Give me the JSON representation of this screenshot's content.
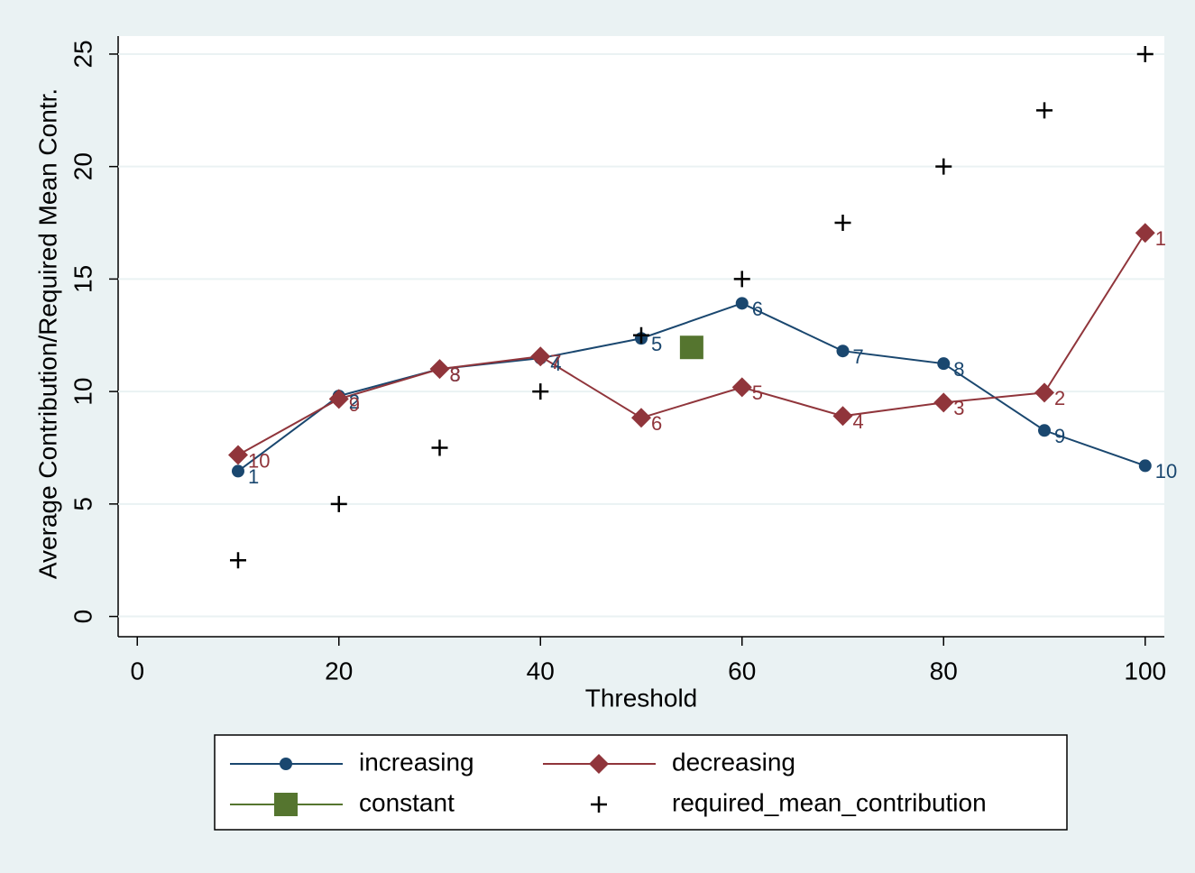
{
  "chart_data": {
    "type": "line",
    "x_label": "Threshold",
    "y_label": "Average Contribution/Required Mean Contr.",
    "xlim": [
      -1.9,
      101.9
    ],
    "ylim": [
      -0.9,
      25.8
    ],
    "xticks": [
      0,
      20,
      40,
      60,
      80,
      100
    ],
    "yticks": [
      0,
      5,
      10,
      15,
      20,
      25
    ],
    "grid": true,
    "series": [
      {
        "name": "increasing",
        "color": "#1a476f",
        "marker": "circle",
        "line": true,
        "x": [
          10,
          20,
          30,
          40,
          50,
          60,
          70,
          80,
          90,
          100
        ],
        "values": [
          6.46,
          9.8,
          11.0,
          11.48,
          12.36,
          13.92,
          11.8,
          11.24,
          8.27,
          6.7
        ],
        "point_labels": [
          "1",
          "2",
          "3",
          "4",
          "5",
          "6",
          "7",
          "8",
          "9",
          "10"
        ]
      },
      {
        "name": "decreasing",
        "color": "#90353b",
        "marker": "diamond",
        "line": true,
        "x": [
          10,
          20,
          30,
          40,
          50,
          60,
          70,
          80,
          90,
          100
        ],
        "values": [
          7.18,
          9.67,
          11.0,
          11.56,
          8.83,
          10.19,
          8.91,
          9.51,
          9.95,
          17.05
        ],
        "point_labels": [
          "10",
          "9",
          "8",
          "7",
          "6",
          "5",
          "4",
          "3",
          "2",
          "1"
        ]
      },
      {
        "name": "constant",
        "color": "#55752f",
        "marker": "square",
        "line": true,
        "x": [
          55
        ],
        "values": [
          11.96
        ]
      },
      {
        "name": "required_mean_contribution",
        "color": "#000000",
        "marker": "plus",
        "line": false,
        "x": [
          10,
          20,
          30,
          40,
          50,
          60,
          70,
          80,
          90,
          100
        ],
        "values": [
          2.5,
          5,
          7.5,
          10,
          12.5,
          15,
          17.5,
          20,
          22.5,
          25
        ]
      }
    ]
  }
}
